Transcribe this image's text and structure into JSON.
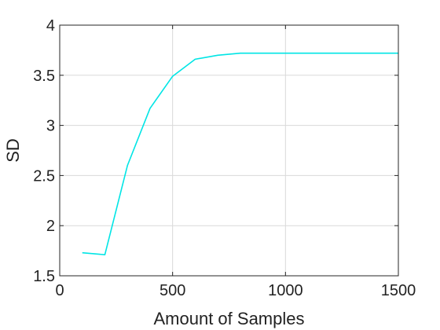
{
  "chart_data": {
    "type": "line",
    "xlabel": "Amount of Samples",
    "ylabel": "SD",
    "xlim": [
      0,
      1500
    ],
    "ylim": [
      1.5,
      4
    ],
    "xticks": [
      0,
      500,
      1000,
      1500
    ],
    "xtick_labels": [
      "0",
      "500",
      "1000",
      "1500"
    ],
    "yticks": [
      1.5,
      2,
      2.5,
      3,
      3.5,
      4
    ],
    "ytick_labels": [
      "1.5",
      "2",
      "2.5",
      "3",
      "3.5",
      "4"
    ],
    "grid": true,
    "series": [
      {
        "color": "#00e5e5",
        "x": [
          100,
          200,
          300,
          400,
          500,
          600,
          700,
          800,
          900,
          1000,
          1100,
          1200,
          1300,
          1400,
          1500
        ],
        "y": [
          1.73,
          1.71,
          2.6,
          3.17,
          3.49,
          3.66,
          3.7,
          3.72,
          3.72,
          3.72,
          3.72,
          3.72,
          3.72,
          3.72,
          3.72
        ]
      }
    ]
  }
}
